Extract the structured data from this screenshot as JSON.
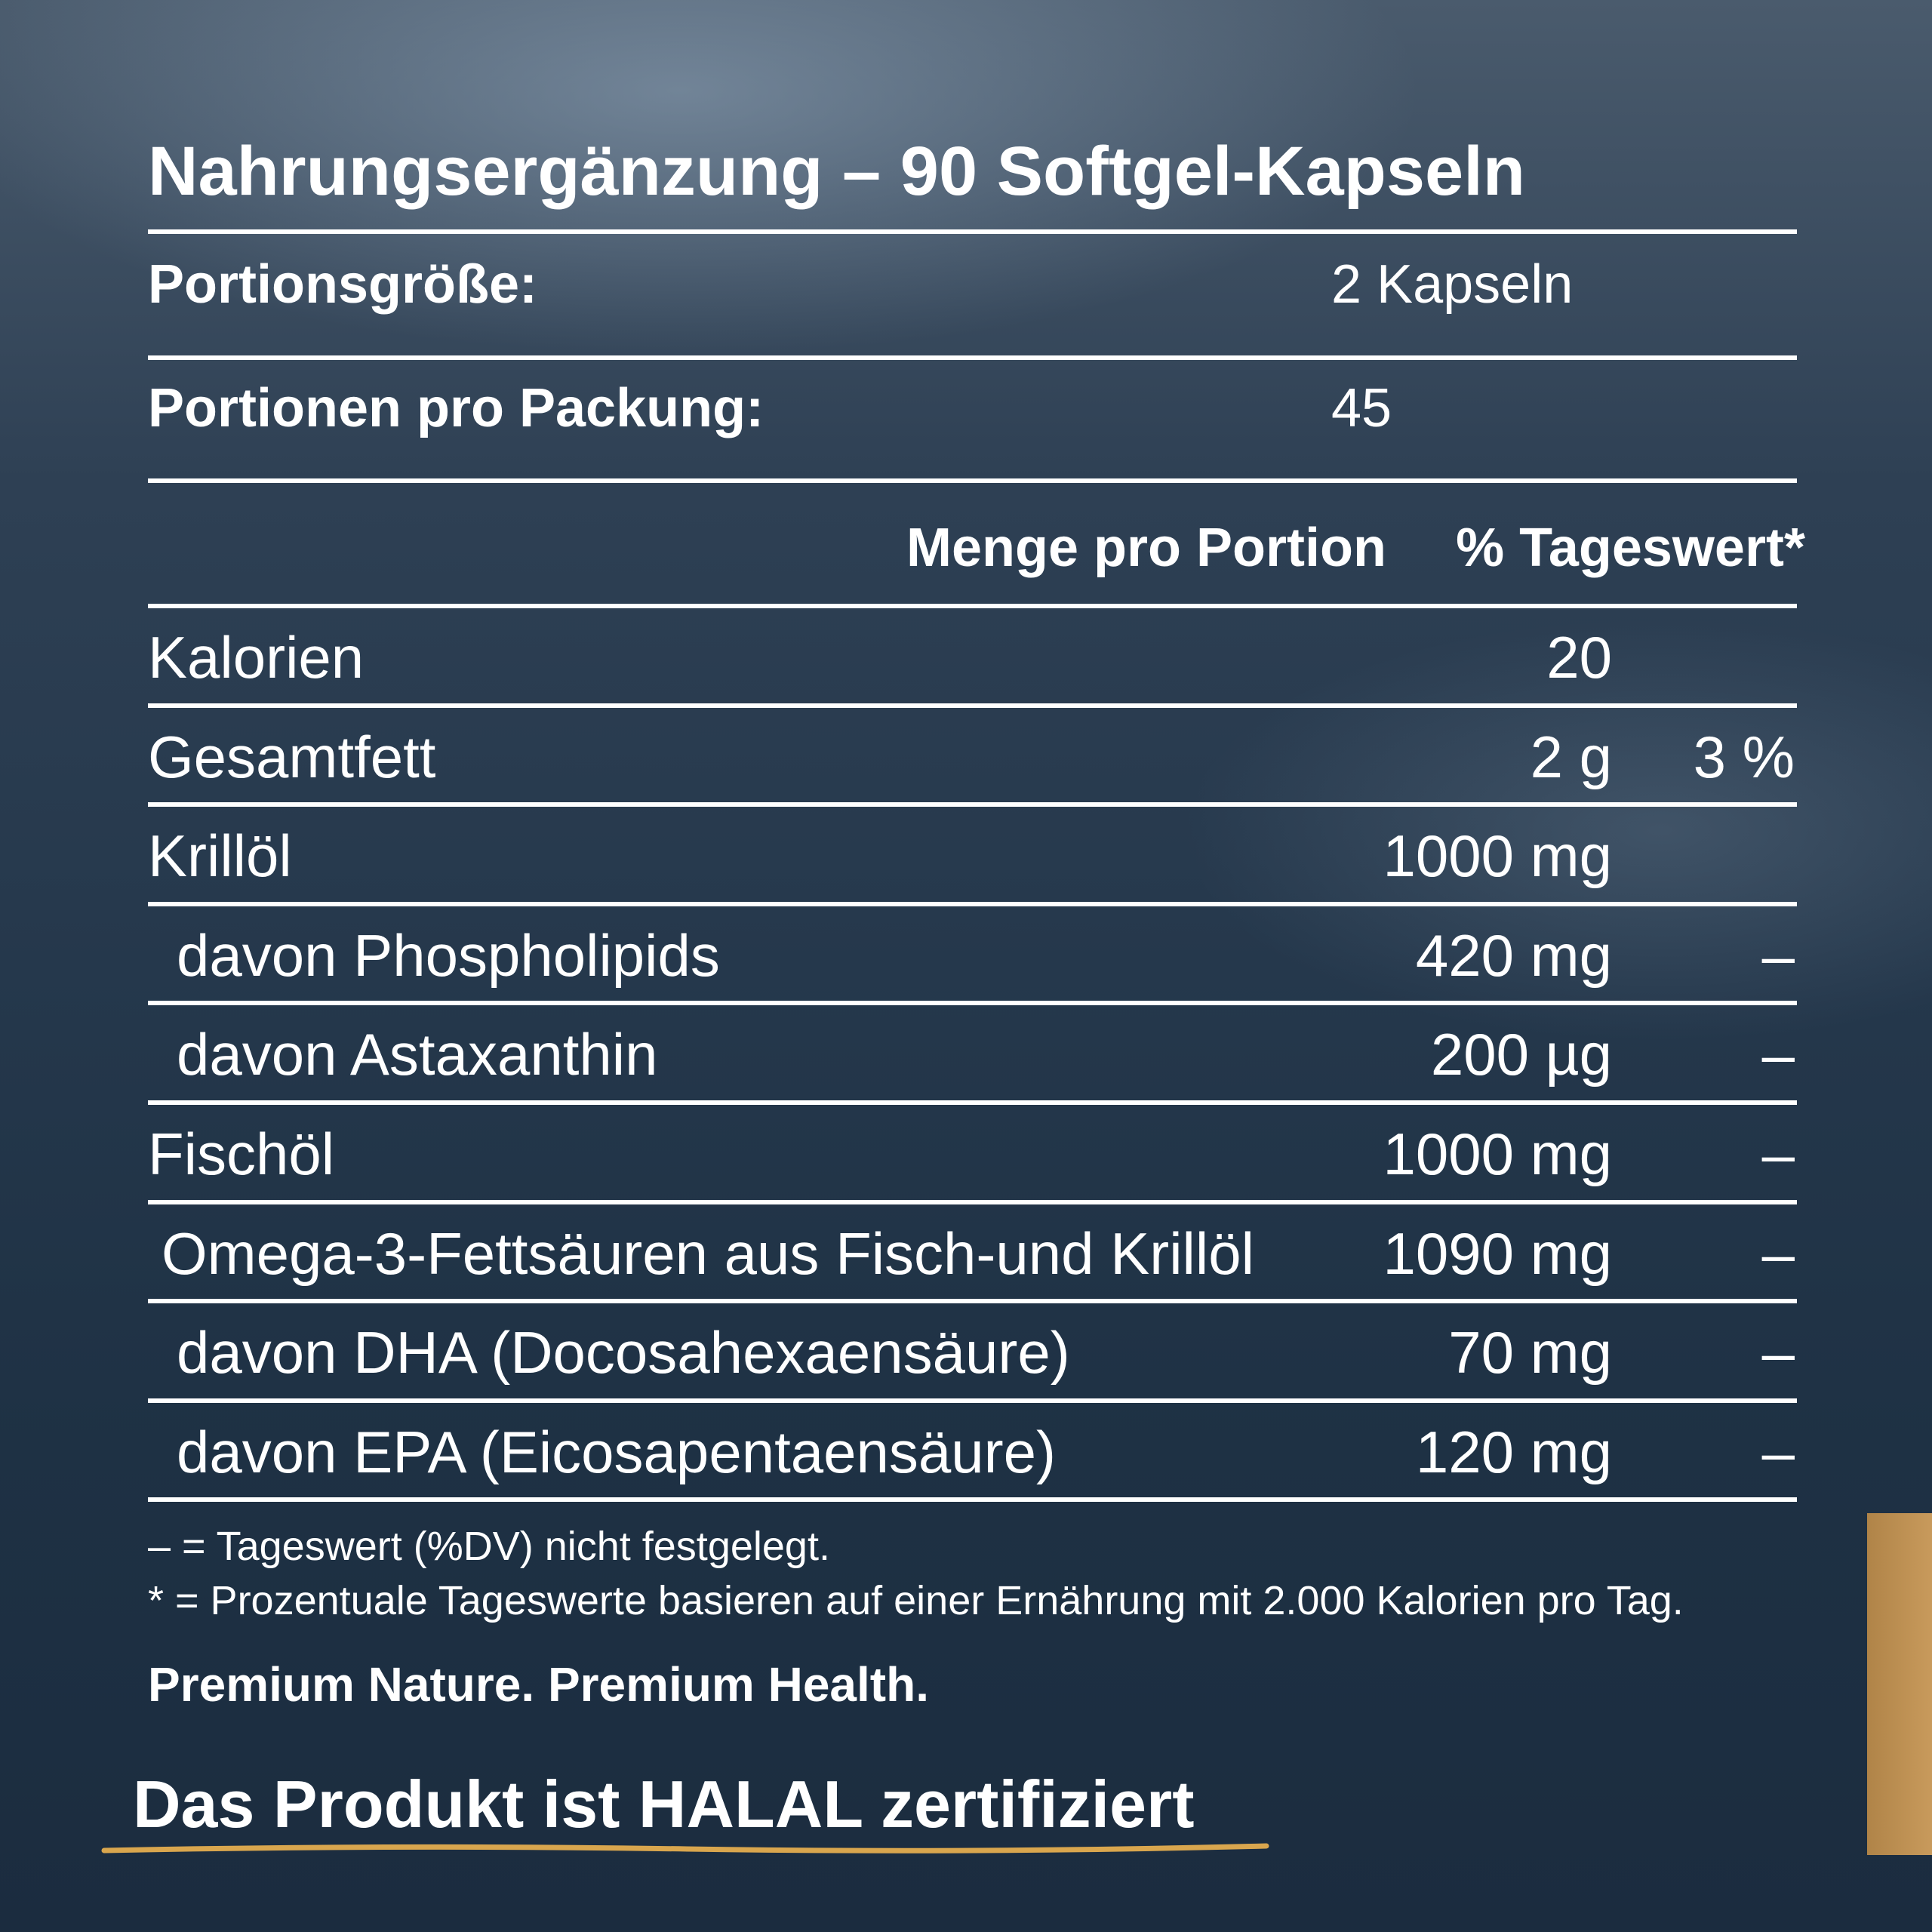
{
  "title": "Nahrungsergänzung – 90 Softgel-Kapseln",
  "serving": [
    {
      "label": "Portionsgröße:",
      "value": "2 Kapseln"
    },
    {
      "label": "Portionen pro Packung:",
      "value": "45"
    }
  ],
  "table": {
    "header": [
      "Menge pro Portion",
      "% Tageswert*"
    ],
    "rows": [
      {
        "name": "Kalorien",
        "amount": "20"
      },
      {
        "name": "Gesamtfett",
        "amount": "2 g",
        "dv": "3 %"
      },
      {
        "name": "Krillöl",
        "amount": "1000 mg"
      },
      {
        "name": "davon Phospholipids",
        "amount": "420 mg",
        "dv": "–"
      },
      {
        "name": "davon Astaxanthin",
        "amount": "200 µg",
        "dv": "–"
      },
      {
        "name": "Fischöl",
        "amount": "1000 mg",
        "dv": "–"
      },
      {
        "name": "Omega-3-Fettsäuren aus Fisch-und Krillöl",
        "amount": "1090 mg",
        "dv": "–"
      },
      {
        "name": "davon DHA (Docosahexaensäure)",
        "amount": "70 mg",
        "dv": "–"
      },
      {
        "name": "davon EPA (Eicosapentaensäure)",
        "amount": "120 mg",
        "dv": "–"
      }
    ]
  },
  "footnotes": [
    "– = Tageswert (%DV) nicht festgelegt.",
    "* = Prozentuale Tageswerte basieren auf einer Ernährung mit 2.000 Kalorien pro Tag."
  ],
  "slogan": "Premium Nature. Premium Health.",
  "halal": "Das Produkt ist HALAL zertifiziert"
}
